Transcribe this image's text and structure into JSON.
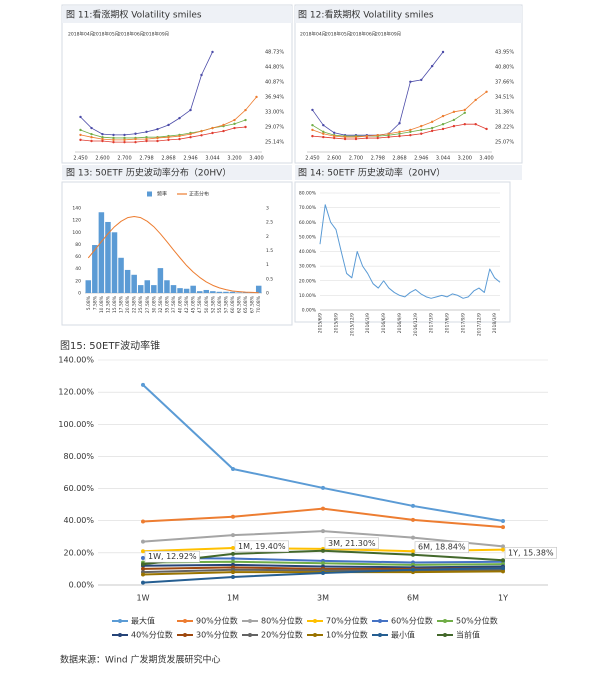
{
  "chart_data": [
    {
      "type": "line",
      "title": "图 11:看涨期权 Volatility smiles",
      "legend": "top",
      "yaxis_position": "right",
      "grid": false,
      "categories": [
        "2.450",
        null,
        "2.600",
        null,
        "2.700",
        null,
        "2.798",
        null,
        "2.868",
        null,
        "2.946",
        null,
        "3.044",
        null,
        "3.200",
        null,
        "3.400"
      ],
      "ylim": [
        22.52,
        51.87
      ],
      "yticks": [
        {
          "value": 48.73,
          "label": "48.73%"
        },
        {
          "value": 44.8,
          "label": "44.80%"
        },
        {
          "value": 40.87,
          "label": "40.87%"
        },
        {
          "value": 36.94,
          "label": "36.94%"
        },
        {
          "value": 33.0,
          "label": "33.00%"
        },
        {
          "value": 29.07,
          "label": "29.07%"
        },
        {
          "value": 25.14,
          "label": "25.14%"
        }
      ],
      "series": [
        {
          "name": "2018年04月",
          "color": "#4b4ba8",
          "values": [
            31.7,
            28.8,
            27.2,
            27.0,
            27.0,
            27.3,
            27.8,
            28.5,
            29.6,
            31.4,
            33.5,
            42.7,
            48.73,
            null,
            null,
            null,
            null
          ]
        },
        {
          "name": "2018年05月",
          "color": "#70ad47",
          "values": [
            28.3,
            27.2,
            26.4,
            26.2,
            26.2,
            26.2,
            26.4,
            26.4,
            26.7,
            27.0,
            27.5,
            28.0,
            28.8,
            29.3,
            29.9,
            30.9,
            null
          ]
        },
        {
          "name": "2018年06月",
          "color": "#ed7d31",
          "values": [
            27.0,
            26.4,
            25.9,
            25.7,
            25.7,
            25.9,
            25.9,
            26.2,
            26.4,
            26.7,
            27.2,
            28.0,
            28.8,
            29.6,
            30.9,
            33.5,
            36.94
          ]
        },
        {
          "name": "2018年09月",
          "color": "#e03c31",
          "values": [
            25.7,
            25.4,
            25.4,
            25.1,
            25.1,
            25.1,
            25.4,
            25.4,
            25.7,
            25.9,
            26.4,
            26.9,
            27.5,
            28.0,
            28.8,
            29.07,
            null
          ]
        }
      ]
    },
    {
      "type": "line",
      "title": "图 12:看跌期权 Volatility smiles",
      "legend": "top",
      "yaxis_position": "right",
      "grid": false,
      "categories": [
        "2.450",
        null,
        "2.600",
        null,
        "2.700",
        null,
        "2.798",
        null,
        "2.868",
        null,
        "2.946",
        null,
        "3.044",
        null,
        "3.200",
        null,
        "3.400"
      ],
      "ylim": [
        22.97,
        46.47
      ],
      "yticks": [
        {
          "value": 43.95,
          "label": "43.95%"
        },
        {
          "value": 40.8,
          "label": "40.80%"
        },
        {
          "value": 37.66,
          "label": "37.66%"
        },
        {
          "value": 34.51,
          "label": "34.51%"
        },
        {
          "value": 31.36,
          "label": "31.36%"
        },
        {
          "value": 28.22,
          "label": "28.22%"
        },
        {
          "value": 25.07,
          "label": "25.07%"
        }
      ],
      "series": [
        {
          "name": "2018年04月",
          "color": "#4b4ba8",
          "values": [
            31.8,
            28.6,
            27.0,
            26.5,
            26.5,
            26.5,
            26.5,
            26.8,
            29.0,
            37.7,
            38.1,
            41.0,
            43.95,
            null,
            null,
            null,
            null
          ]
        },
        {
          "name": "2018年05月",
          "color": "#70ad47",
          "values": [
            28.6,
            27.2,
            26.5,
            26.3,
            26.3,
            26.3,
            26.3,
            26.5,
            26.8,
            27.2,
            27.6,
            28.0,
            28.8,
            29.7,
            31.2,
            null,
            null
          ]
        },
        {
          "name": "2018年06月",
          "color": "#ed7d31",
          "values": [
            27.6,
            26.8,
            26.3,
            26.1,
            26.1,
            26.3,
            26.5,
            26.8,
            27.2,
            27.6,
            28.4,
            29.3,
            30.5,
            31.4,
            31.8,
            33.9,
            35.6
          ]
        },
        {
          "name": "2018年09月",
          "color": "#e03c31",
          "values": [
            26.3,
            26.1,
            25.9,
            25.7,
            25.7,
            25.9,
            25.9,
            26.1,
            26.3,
            26.5,
            26.8,
            27.4,
            27.8,
            28.4,
            28.8,
            28.8,
            27.8
          ]
        }
      ]
    },
    {
      "type": "bar",
      "title": "图 13: 50ETF 历史波动率分布（20HV）",
      "legend": "top",
      "grid": false,
      "categories": [
        "5.08%",
        "7.58%",
        "10.08%",
        "12.58%",
        "15.08%",
        "17.58%",
        "20.08%",
        "22.58%",
        "25.08%",
        "27.58%",
        "30.08%",
        "32.58%",
        "35.08%",
        "37.58%",
        "40.08%",
        "42.58%",
        "45.08%",
        "47.58%",
        "50.08%",
        "52.58%",
        "55.08%",
        "57.58%",
        "60.08%",
        "62.58%",
        "65.08%",
        "67.58%",
        "70.08%"
      ],
      "ylim": [
        0,
        140
      ],
      "yticks": [
        0,
        20,
        40,
        60,
        80,
        100,
        120,
        140
      ],
      "y2lim": [
        0,
        3
      ],
      "y2ticks": [
        0,
        0.5,
        1,
        1.5,
        2,
        2.5,
        3
      ],
      "series": [
        {
          "name": "频率",
          "color": "#5b9bd5",
          "values": [
            21,
            79,
            133,
            117,
            100,
            58,
            38,
            30,
            13,
            21,
            13,
            41,
            21,
            13,
            8,
            7,
            12,
            3,
            5,
            3,
            2,
            2,
            2,
            1,
            1,
            1,
            12
          ]
        },
        {
          "name": "正态分布",
          "color": "#ed7d31",
          "axis": "y2",
          "values": [
            1.24,
            1.52,
            1.81,
            2.09,
            2.34,
            2.53,
            2.66,
            2.7,
            2.66,
            2.53,
            2.34,
            2.09,
            1.81,
            1.52,
            1.24,
            0.97,
            0.74,
            0.55,
            0.39,
            0.27,
            0.18,
            0.12,
            0.07,
            0.05,
            0.03,
            0.02,
            0.01
          ]
        }
      ]
    },
    {
      "type": "line",
      "title": "图 14: 50ETF 历史波动率（20HV）",
      "grid": true,
      "x": [
        "2015/6/9",
        "2015/7/9",
        "2015/8/9",
        "2015/9/9",
        "2015/10/9",
        "2015/11/9",
        "2015/12/9",
        "2016/1/9",
        "2016/2/9",
        "2016/3/9",
        "2016/4/9",
        "2016/5/9",
        "2016/6/9",
        "2016/7/9",
        "2016/8/9",
        "2016/9/9",
        "2016/10/9",
        "2016/11/9",
        "2016/12/9",
        "2017/1/9",
        "2017/2/9",
        "2017/3/9",
        "2017/4/9",
        "2017/5/9",
        "2017/6/9",
        "2017/7/9",
        "2017/8/9",
        "2017/9/9",
        "2017/10/9",
        "2017/11/9",
        "2017/12/9",
        "2018/1/9",
        "2018/2/9",
        "2018/3/9",
        "2018/4/9"
      ],
      "xlim": [
        "2015/6/9",
        "2018/4/9"
      ],
      "xticks": [
        "2015/6/9",
        "2015/9/9",
        "2015/12/9",
        "2016/3/9",
        "2016/6/9",
        "2016/9/9",
        "2016/12/9",
        "2017/3/9",
        "2017/6/9",
        "2017/9/9",
        "2017/12/9",
        "2018/3/9"
      ],
      "ylim": [
        0,
        80
      ],
      "yticks": [
        {
          "value": 0,
          "label": "0.00%"
        },
        {
          "value": 10,
          "label": "10.00%"
        },
        {
          "value": 20,
          "label": "20.00%"
        },
        {
          "value": 30,
          "label": "30.00%"
        },
        {
          "value": 40,
          "label": "40.00%"
        },
        {
          "value": 50,
          "label": "50.00%"
        },
        {
          "value": 60,
          "label": "60.00%"
        },
        {
          "value": 70,
          "label": "70.00%"
        },
        {
          "value": 80,
          "label": "80.00%"
        }
      ],
      "series": [
        {
          "color": "#5b9bd5",
          "values": [
            45,
            72,
            60,
            55,
            40,
            25,
            22,
            40,
            30,
            25,
            18,
            15,
            20,
            15,
            12,
            10,
            9,
            12,
            14,
            11,
            9,
            8,
            9,
            10,
            9,
            11,
            10,
            8,
            9,
            13,
            15,
            12,
            28,
            22,
            19
          ]
        }
      ]
    },
    {
      "type": "line",
      "title": "图15: 50ETF波动率锥",
      "legend": "bottom",
      "grid": true,
      "categories": [
        "1W",
        "1M",
        "3M",
        "6M",
        "1Y"
      ],
      "ylim": [
        0,
        140
      ],
      "yticks": [
        {
          "value": 0,
          "label": "0.00%"
        },
        {
          "value": 20,
          "label": "20.00%"
        },
        {
          "value": 40,
          "label": "40.00%"
        },
        {
          "value": 60,
          "label": "60.00%"
        },
        {
          "value": 80,
          "label": "80.00%"
        },
        {
          "value": 100,
          "label": "100.00%"
        },
        {
          "value": 120,
          "label": "120.00%"
        },
        {
          "value": 140,
          "label": "140.00%"
        }
      ],
      "series": [
        {
          "name": "最大值",
          "color": "#5b9bd5",
          "values": [
            124.5,
            72.2,
            60.4,
            49.2,
            39.8
          ]
        },
        {
          "name": "90%分位数",
          "color": "#ed7d31",
          "values": [
            39.5,
            42.5,
            47.5,
            40.5,
            36
          ]
        },
        {
          "name": "80%分位数",
          "color": "#a5a5a5",
          "values": [
            27,
            31,
            33.5,
            29.5,
            24
          ]
        },
        {
          "name": "70%分位数",
          "color": "#ffc000",
          "values": [
            21,
            23,
            22.5,
            21,
            22
          ]
        },
        {
          "name": "60%分位数",
          "color": "#4472c4",
          "values": [
            16.8,
            16.5,
            15,
            14,
            14.5
          ]
        },
        {
          "name": "50%分位数",
          "color": "#70ad47",
          "values": [
            14,
            14.5,
            13.5,
            12.5,
            13
          ]
        },
        {
          "name": "40%分位数",
          "color": "#264478",
          "values": [
            12,
            12.5,
            11.5,
            11,
            11.5
          ]
        },
        {
          "name": "30%分位数",
          "color": "#9e480e",
          "values": [
            10,
            11,
            10,
            10,
            10.5
          ]
        },
        {
          "name": "20%分位数",
          "color": "#636363",
          "values": [
            8,
            9.5,
            9,
            9,
            9.5
          ]
        },
        {
          "name": "10%分位数",
          "color": "#997300",
          "values": [
            6.5,
            8,
            8,
            8,
            8.5
          ]
        },
        {
          "name": "最小值",
          "color": "#255e91",
          "values": [
            1.5,
            5,
            7.5,
            9.5,
            10.5
          ]
        },
        {
          "name": "当前值",
          "color": "#43682b",
          "values": [
            12.92,
            19.4,
            21.3,
            18.84,
            15.38
          ],
          "value_labels": [
            "1W, 12.92%",
            "1M, 19.40%",
            "3M, 21.30%",
            "6M, 18.84%",
            "1Y, 15.38%"
          ]
        }
      ]
    }
  ],
  "source": "数据来源：Wind 广发期货发展研究中心"
}
